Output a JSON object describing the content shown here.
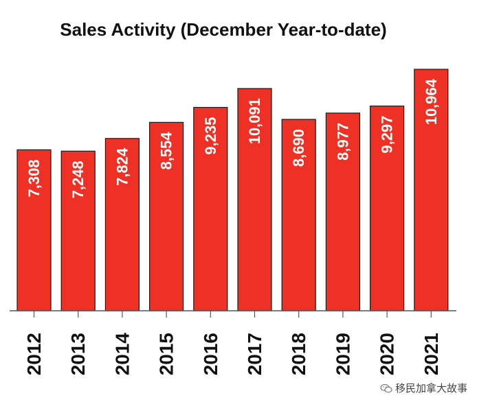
{
  "chart_data": {
    "type": "bar",
    "title": "Sales Activity (December Year-to-date)",
    "categories": [
      "2012",
      "2013",
      "2014",
      "2015",
      "2016",
      "2017",
      "2018",
      "2019",
      "2020",
      "2021"
    ],
    "values": [
      7308,
      7248,
      7824,
      8554,
      9235,
      10091,
      8690,
      8977,
      9297,
      10964
    ],
    "value_labels": [
      "7,308",
      "7,248",
      "7,824",
      "8,554",
      "9,235",
      "10,091",
      "8,690",
      "8,977",
      "9,297",
      "10,964"
    ],
    "ylim": [
      0,
      11500
    ],
    "bar_color": "#ee3124",
    "grid": false,
    "xlabel": "",
    "ylabel": ""
  },
  "watermark": {
    "text": "移民加拿大故事",
    "icon": "wechat-icon"
  }
}
